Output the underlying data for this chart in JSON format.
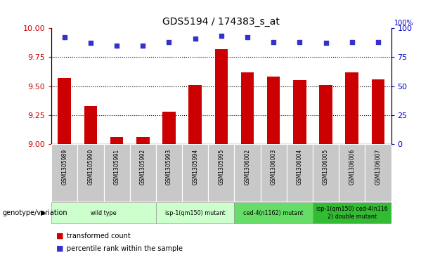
{
  "title": "GDS5194 / 174383_s_at",
  "samples": [
    "GSM1305989",
    "GSM1305990",
    "GSM1305991",
    "GSM1305992",
    "GSM1305993",
    "GSM1305994",
    "GSM1305995",
    "GSM1306002",
    "GSM1306003",
    "GSM1306004",
    "GSM1306005",
    "GSM1306006",
    "GSM1306007"
  ],
  "transformed_count": [
    9.57,
    9.33,
    9.06,
    9.06,
    9.28,
    9.51,
    9.82,
    9.62,
    9.58,
    9.55,
    9.51,
    9.62,
    9.56
  ],
  "percentile_rank": [
    92,
    87,
    85,
    85,
    88,
    91,
    93,
    92,
    88,
    88,
    87,
    88,
    88
  ],
  "ylim_left": [
    9.0,
    10.0
  ],
  "ylim_right": [
    0,
    100
  ],
  "yticks_left": [
    9.0,
    9.25,
    9.5,
    9.75,
    10.0
  ],
  "yticks_right": [
    0,
    25,
    50,
    75,
    100
  ],
  "bar_color": "#cc0000",
  "dot_color": "#3333cc",
  "groups": [
    {
      "label": "wild type",
      "indices": [
        0,
        1,
        2,
        3
      ],
      "color": "#ccffcc"
    },
    {
      "label": "isp-1(qm150) mutant",
      "indices": [
        4,
        5,
        6
      ],
      "color": "#ccffcc"
    },
    {
      "label": "ced-4(n1162) mutant",
      "indices": [
        7,
        8,
        9
      ],
      "color": "#66dd66"
    },
    {
      "label": "isp-1(qm150) ced-4(n116\n2) double mutant",
      "indices": [
        10,
        11,
        12
      ],
      "color": "#33bb33"
    }
  ],
  "genotype_label": "genotype/variation",
  "legend_bar_label": "transformed count",
  "legend_dot_label": "percentile rank within the sample",
  "grid_color": "#888888",
  "background_color": "#ffffff",
  "plot_bg_color": "#ffffff",
  "left_tick_color": "#cc0000",
  "right_tick_color": "#0000cc",
  "sample_box_color": "#c8c8c8",
  "percent_label": "100%"
}
